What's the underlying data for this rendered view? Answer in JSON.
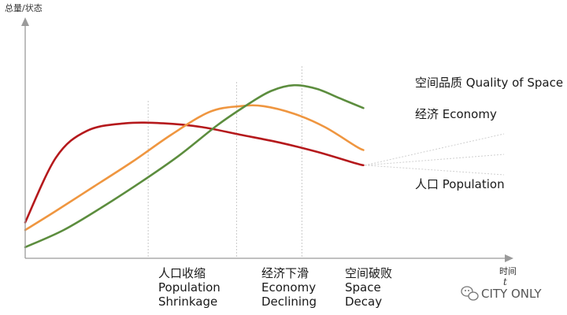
{
  "chart_data": {
    "type": "line",
    "title": "",
    "ylabel": "总量/状态",
    "xlabel": "时间",
    "xlabel_symbol": "t",
    "xlim": [
      0,
      100
    ],
    "ylim": [
      0,
      100
    ],
    "grid": false,
    "legend": "inline-right",
    "series": [
      {
        "name": "人口 Population",
        "color": "#b5191c",
        "x": [
          0,
          8,
          16,
          26,
          36,
          46,
          56,
          66,
          76,
          86,
          88
        ],
        "y": [
          18,
          52,
          66,
          70,
          70,
          68,
          64,
          60,
          55,
          49,
          48
        ]
      },
      {
        "name": "经济 Economy",
        "color": "#ef9640",
        "x": [
          0,
          8,
          18,
          28,
          38,
          48,
          56,
          62,
          70,
          78,
          86,
          88
        ],
        "y": [
          14,
          24,
          37,
          50,
          64,
          76,
          79,
          79,
          75,
          68,
          58,
          56
        ]
      },
      {
        "name": "空间品质 Quality of Space",
        "color": "#5c8d3e",
        "x": [
          0,
          10,
          20,
          30,
          40,
          50,
          58,
          64,
          70,
          76,
          82,
          88
        ],
        "y": [
          5,
          14,
          26,
          39,
          53,
          69,
          80,
          87,
          90,
          88,
          83,
          78
        ]
      }
    ],
    "series_labels": [
      "空间品质 Quality of Space",
      "经济 Economy",
      "人口 Population"
    ],
    "phases": [
      {
        "x": 32,
        "name_cn": "人口收缩",
        "name_en_1": "Population",
        "name_en_2": "Shrinkage"
      },
      {
        "x": 55,
        "name_cn": "经济下滑",
        "name_en_1": "Economy",
        "name_en_2": "Declining"
      },
      {
        "x": 72,
        "name_cn": "空间破败",
        "name_en_1": "Space",
        "name_en_2": "Decay"
      }
    ]
  },
  "watermark": {
    "text": "CITY ONLY",
    "icon": "wechat-icon"
  }
}
